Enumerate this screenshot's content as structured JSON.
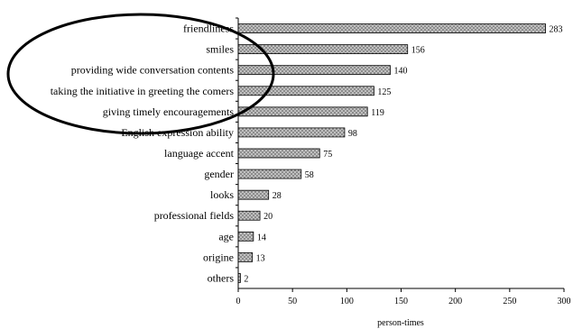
{
  "chart_data": {
    "type": "bar",
    "orientation": "horizontal",
    "categories": [
      "friendliness",
      "smiles",
      "providing wide conversation contents",
      "taking the initiative in greeting the comers",
      "giving timely encouragements",
      "English expression ability",
      "language accent",
      "gender",
      "looks",
      "professional fields",
      "age",
      "origine",
      "others"
    ],
    "values": [
      283,
      156,
      140,
      125,
      119,
      98,
      75,
      58,
      28,
      20,
      14,
      13,
      2
    ],
    "value_labels": [
      "283",
      "156",
      "140",
      "125",
      "119",
      "98",
      "75",
      "58",
      "28",
      "20",
      "14",
      "13",
      "2"
    ],
    "xlabel": "person-times",
    "xlim": [
      0,
      300
    ],
    "xticks": [
      "0",
      "50",
      "100",
      "150",
      "200",
      "250",
      "300"
    ],
    "grid": false,
    "bar_fill": "#8c8c8c",
    "bar_pattern_dot": "#ffffff",
    "annotation": "ellipse highlighting top five categories"
  }
}
